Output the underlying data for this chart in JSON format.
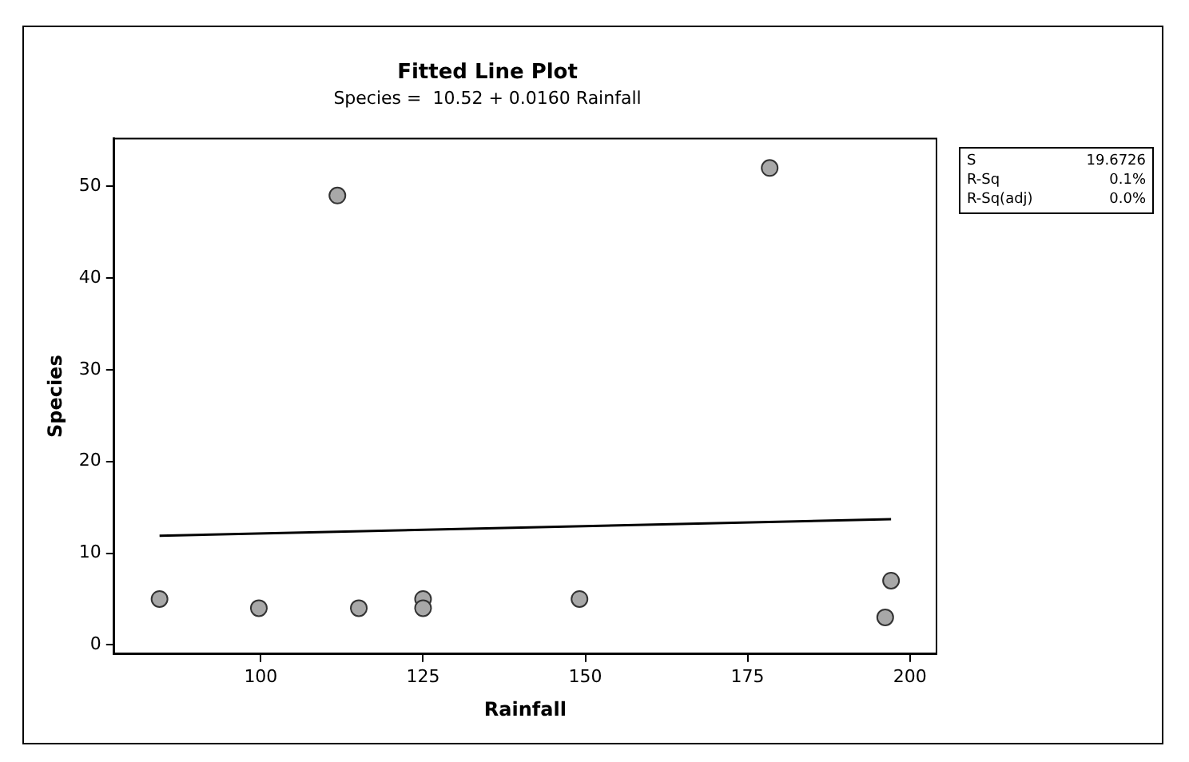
{
  "chart_data": {
    "type": "scatter",
    "title": "Fitted Line Plot",
    "subtitle": "Species =  10.52 + 0.0160 Rainfall",
    "xlabel": "Rainfall",
    "ylabel": "Species",
    "annotations": [
      "S",
      "19.6726",
      "R-Sq",
      "0.1%",
      "R-Sq(adj)",
      "0.0%"
    ],
    "series": [
      {
        "color": "#a8a8a8",
        "x": [
          84.4,
          99.7,
          111.8,
          115.1,
          125,
          125,
          149.1,
          178.4,
          197.1,
          196.2
        ],
        "values": [
          5,
          4,
          49,
          4,
          5,
          4,
          5,
          52,
          7,
          3
        ]
      },
      {
        "type": "line",
        "color": "#000000",
        "x": [
          84.4,
          197.1
        ],
        "values": [
          11.9,
          13.7
        ],
        "marker": "none"
      }
    ],
    "marker": "circle",
    "xlim": [
      77.4,
      204.1
    ],
    "ylim": [
      -1,
      55.2
    ],
    "xticks": [
      100,
      125,
      150,
      175,
      200
    ],
    "yticks": [
      0,
      10,
      20,
      30,
      40,
      50
    ],
    "grid": false,
    "legend": false
  }
}
